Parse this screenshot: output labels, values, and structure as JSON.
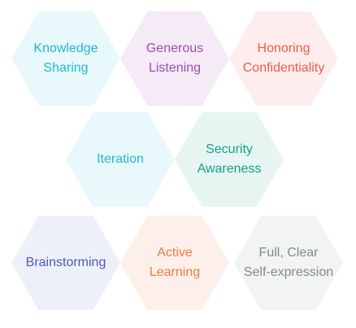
{
  "hexagons": [
    {
      "label_line1": "Knowledge",
      "label_line2": "Sharing",
      "text_color": "#22b8cf",
      "fill_color": "#e9f8fb"
    },
    {
      "label_line1": "Generous",
      "label_line2": "Listening",
      "text_color": "#9c4fb0",
      "fill_color": "#f4ebf7"
    },
    {
      "label_line1": "Honoring",
      "label_line2": "Confidentiality",
      "text_color": "#ee5a4f",
      "fill_color": "#fdeeed"
    },
    {
      "label_line1": "Iteration",
      "label_line2": "",
      "text_color": "#22b8cf",
      "fill_color": "#e9f8fb"
    },
    {
      "label_line1": "Security",
      "label_line2": "Awareness",
      "text_color": "#15a08a",
      "fill_color": "#e6f5f2"
    },
    {
      "label_line1": "Brainstorming",
      "label_line2": "",
      "text_color": "#4a5bb5",
      "fill_color": "#eef0f9"
    },
    {
      "label_line1": "Active",
      "label_line2": "Learning",
      "text_color": "#f47b3f",
      "fill_color": "#fdf0ea"
    },
    {
      "label_line1": "Full, Clear",
      "label_line2": "Self-expression",
      "text_color": "#818a90",
      "fill_color": "#f2f3f3"
    }
  ]
}
